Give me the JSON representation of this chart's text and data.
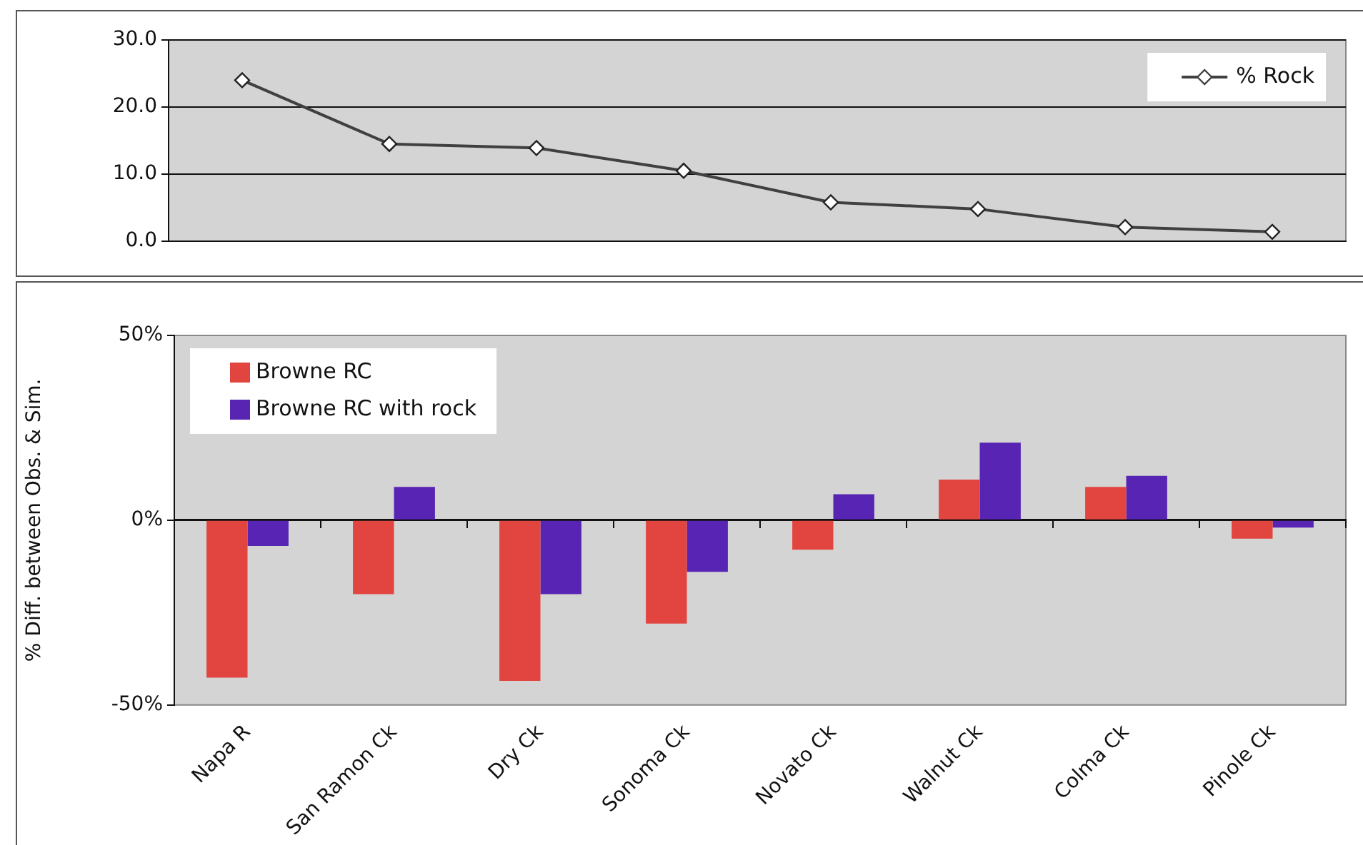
{
  "chart_data": [
    {
      "type": "line",
      "categories": [
        null,
        null,
        null,
        null,
        null,
        null,
        null,
        null
      ],
      "series": [
        {
          "name": "% Rock",
          "color": "#404040",
          "values": [
            24.0,
            14.5,
            13.9,
            10.5,
            5.8,
            4.8,
            2.1,
            1.4
          ]
        }
      ],
      "ylim": [
        0,
        30
      ],
      "yticks": [
        {
          "value": 0,
          "label": "0.0"
        },
        {
          "value": 10,
          "label": "10.0"
        },
        {
          "value": 20,
          "label": "20.0"
        },
        {
          "value": 30,
          "label": "30.0"
        }
      ],
      "grid": "y",
      "legend": "top right",
      "marker": "diamond",
      "tick_labels": "y"
    },
    {
      "type": "bar",
      "categories": [
        "Napa R",
        "San Ramon Ck",
        "Dry Ck",
        "Sonoma Ck",
        "Novato Ck",
        "Walnut Ck",
        "Colma Ck",
        "Pinole Ck"
      ],
      "ylabel": "% Diff. between Obs. & Sim.",
      "series": [
        {
          "name": "Browne RC",
          "color": "#e2453f",
          "values": [
            -42.6,
            -20,
            -43.5,
            -28,
            -8,
            11,
            9,
            -5
          ]
        },
        {
          "name": "Browne RC with rock",
          "color": "#5824b4",
          "values": [
            -7,
            9,
            -20,
            -14,
            7,
            21,
            12,
            -2
          ]
        }
      ],
      "ylim": [
        -50,
        50
      ],
      "yticks": [
        {
          "value": -50,
          "label": "-50%"
        },
        {
          "value": 0,
          "label": "0%"
        },
        {
          "value": 50,
          "label": "50%"
        }
      ],
      "legend": "top left"
    }
  ]
}
